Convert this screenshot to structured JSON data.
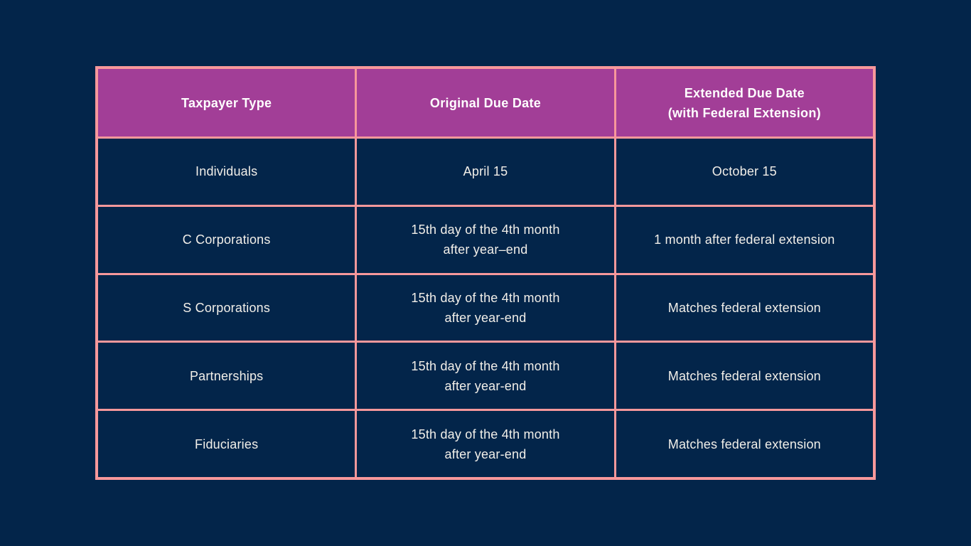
{
  "page": {
    "background_color": "#03254A"
  },
  "table": {
    "border_color": "#F7989B",
    "header_background_color": "#A23E97",
    "header_text_color": "#FFFFFF",
    "cell_background_color": "#03254A",
    "cell_text_color": "#F2EFE9",
    "columns": [
      {
        "label": "Taxpayer Type"
      },
      {
        "label": "Original Due Date"
      },
      {
        "label": "Extended Due Date\n(with Federal Extension)"
      }
    ],
    "rows": [
      {
        "cells": [
          "Individuals",
          "April 15",
          "October 15"
        ]
      },
      {
        "cells": [
          "C Corporations",
          "15th day of the 4th month\nafter year–end",
          "1 month after federal extension"
        ]
      },
      {
        "cells": [
          "S Corporations",
          "15th day of the 4th month\nafter year-end",
          "Matches federal extension"
        ]
      },
      {
        "cells": [
          "Partnerships",
          "15th day of the 4th month\nafter year-end",
          "Matches federal extension"
        ]
      },
      {
        "cells": [
          "Fiduciaries",
          "15th day of the 4th month\nafter year-end",
          "Matches federal extension"
        ]
      }
    ]
  }
}
